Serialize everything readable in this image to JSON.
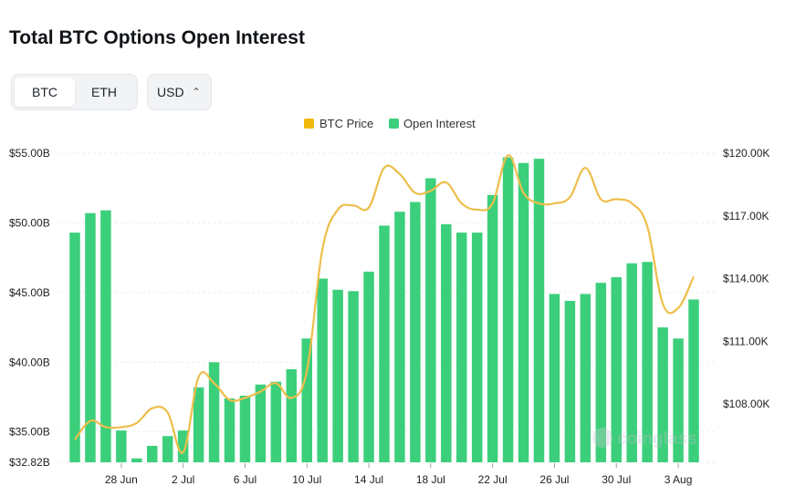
{
  "header": {
    "title": "Total BTC Options Open Interest"
  },
  "controls": {
    "asset_tabs": [
      {
        "label": "BTC",
        "active": true
      },
      {
        "label": "ETH",
        "active": false
      }
    ],
    "currency_select": {
      "value": "USD"
    }
  },
  "watermark": "coinglass",
  "chart_data": {
    "type": "bar",
    "title": "Total BTC Options Open Interest",
    "categories": [
      "25 Jun",
      "26 Jun",
      "27 Jun",
      "28 Jun",
      "29 Jun",
      "30 Jun",
      "1 Jul",
      "2 Jul",
      "3 Jul",
      "4 Jul",
      "5 Jul",
      "6 Jul",
      "7 Jul",
      "8 Jul",
      "9 Jul",
      "10 Jul",
      "11 Jul",
      "12 Jul",
      "13 Jul",
      "14 Jul",
      "15 Jul",
      "16 Jul",
      "17 Jul",
      "18 Jul",
      "19 Jul",
      "20 Jul",
      "21 Jul",
      "22 Jul",
      "23 Jul",
      "24 Jul",
      "25 Jul",
      "26 Jul",
      "27 Jul",
      "28 Jul",
      "29 Jul",
      "30 Jul",
      "31 Jul",
      "1 Aug",
      "2 Aug",
      "3 Aug",
      "4 Aug"
    ],
    "x_tick_labels": [
      "28 Jun",
      "2 Jul",
      "6 Jul",
      "10 Jul",
      "14 Jul",
      "18 Jul",
      "22 Jul",
      "26 Jul",
      "30 Jul",
      "3 Aug"
    ],
    "legend": [
      {
        "name": "BTC Price",
        "color": "#F0B90B"
      },
      {
        "name": "Open Interest",
        "color": "#3CCF7B"
      }
    ],
    "legend_position": "top-center",
    "y_left": {
      "ticks": [
        "$32.82B",
        "$35.00B",
        "$40.00B",
        "$45.00B",
        "$50.00B",
        "$55.00B"
      ],
      "range": [
        32.82,
        55.0
      ]
    },
    "y_right": {
      "ticks": [
        "$108.00K",
        "$111.00K",
        "$114.00K",
        "$117.00K",
        "$120.00K"
      ],
      "range": [
        105.22,
        120.0
      ]
    },
    "series": [
      {
        "name": "Open Interest",
        "type": "bar",
        "axis": "left",
        "unit": "B USD",
        "values": [
          49.3,
          50.7,
          50.9,
          35.1,
          33.1,
          34.0,
          34.7,
          35.1,
          38.2,
          40.0,
          37.4,
          37.6,
          38.4,
          38.6,
          39.5,
          41.7,
          46.0,
          45.2,
          45.1,
          46.5,
          49.8,
          50.8,
          51.5,
          53.2,
          49.9,
          49.3,
          49.3,
          52.0,
          54.7,
          54.3,
          54.6,
          44.9,
          44.4,
          44.9,
          45.7,
          46.1,
          47.1,
          47.2,
          42.5,
          41.7,
          44.5
        ]
      },
      {
        "name": "BTC Price",
        "type": "line",
        "axis": "right",
        "unit": "K USD",
        "values": [
          106.3,
          107.2,
          106.9,
          106.9,
          107.1,
          107.8,
          107.6,
          105.7,
          109.3,
          109.0,
          108.2,
          108.3,
          108.6,
          109.0,
          108.3,
          109.6,
          115.4,
          117.3,
          117.5,
          117.4,
          119.3,
          119.0,
          118.1,
          118.2,
          118.6,
          117.6,
          117.3,
          117.6,
          119.9,
          118.1,
          117.6,
          117.6,
          117.9,
          119.3,
          117.8,
          117.8,
          117.6,
          116.5,
          112.8,
          112.6,
          114.1
        ]
      }
    ],
    "grid": true
  }
}
